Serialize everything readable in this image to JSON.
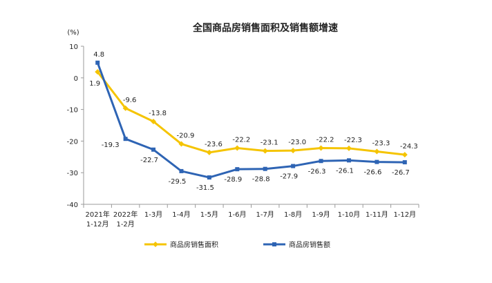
{
  "chart_data": {
    "type": "line",
    "title": "全国商品房销售面积及销售额增速",
    "unit": "(%)",
    "categories": [
      [
        "2021年",
        "1-12月"
      ],
      [
        "2022年",
        "1-2月"
      ],
      [
        "1-3月"
      ],
      [
        "1-4月"
      ],
      [
        "1-5月"
      ],
      [
        "1-6月"
      ],
      [
        "1-7月"
      ],
      [
        "1-8月"
      ],
      [
        "1-9月"
      ],
      [
        "1-10月"
      ],
      [
        "1-11月"
      ],
      [
        "1-12月"
      ]
    ],
    "ylim": [
      -40,
      10
    ],
    "yticks": [
      10,
      0,
      -10,
      -20,
      -30,
      -40
    ],
    "grid": false,
    "legend_position": "bottom",
    "series": [
      {
        "name": "商品房销售面积",
        "color": "#F5C400",
        "marker": "diamond",
        "values": [
          1.9,
          -9.6,
          -13.8,
          -20.9,
          -23.6,
          -22.2,
          -23.1,
          -23.0,
          -22.2,
          -22.3,
          -23.3,
          -24.3
        ],
        "labels": [
          "1.9",
          "-9.6",
          "-13.8",
          "-20.9",
          "-23.6",
          "-22.2",
          "-23.1",
          "-23.0",
          "-22.2",
          "-22.3",
          "-23.3",
          "-24.3"
        ]
      },
      {
        "name": "商品房销售额",
        "color": "#2E64B4",
        "marker": "square",
        "values": [
          4.8,
          -19.3,
          -22.7,
          -29.5,
          -31.5,
          -28.9,
          -28.8,
          -27.9,
          -26.3,
          -26.1,
          -26.6,
          -26.7
        ],
        "labels": [
          "4.8",
          "-19.3",
          "-22.7",
          "-29.5",
          "-31.5",
          "-28.9",
          "-28.8",
          "-27.9",
          "-26.3",
          "-26.1",
          "-26.6",
          "-26.7"
        ]
      }
    ]
  }
}
